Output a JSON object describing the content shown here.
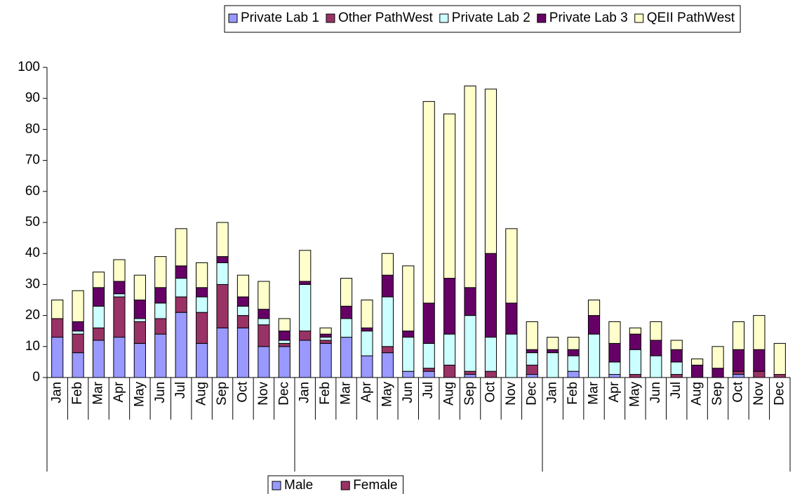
{
  "chart_data": {
    "type": "stacked_bar",
    "categories": [
      "Jan",
      "Feb",
      "Mar",
      "Apr",
      "May",
      "Jun",
      "Jul",
      "Aug",
      "Sep",
      "Oct",
      "Nov",
      "Dec",
      "Jan",
      "Feb",
      "Mar",
      "Apr",
      "May",
      "Jun",
      "Jul",
      "Aug",
      "Sep",
      "Oct",
      "Nov",
      "Dec",
      "Jan",
      "Feb",
      "Mar",
      "Apr",
      "May",
      "Jun",
      "Jul",
      "Aug",
      "Sep",
      "Oct",
      "Nov",
      "Dec"
    ],
    "series": [
      {
        "name": "Private Lab 1",
        "color": "#9999ff",
        "values": [
          13,
          8,
          12,
          13,
          11,
          14,
          21,
          11,
          16,
          16,
          10,
          10,
          12,
          11,
          13,
          7,
          8,
          2,
          2,
          0,
          1,
          0,
          0,
          1,
          0,
          2,
          0,
          1,
          0,
          0,
          0,
          0,
          0,
          1,
          0,
          0
        ]
      },
      {
        "name": "Other PathWest",
        "color": "#993366",
        "values": [
          6,
          6,
          4,
          13,
          7,
          5,
          5,
          10,
          14,
          4,
          7,
          1,
          3,
          1,
          0,
          0,
          2,
          0,
          1,
          4,
          1,
          2,
          0,
          3,
          0,
          0,
          0,
          0,
          1,
          0,
          1,
          0,
          0,
          1,
          2,
          1
        ]
      },
      {
        "name": "Private Lab 2",
        "color": "#ccffff",
        "values": [
          0,
          1,
          7,
          1,
          1,
          5,
          6,
          5,
          7,
          3,
          2,
          1,
          15,
          1,
          6,
          8,
          16,
          11,
          8,
          10,
          18,
          11,
          14,
          4,
          8,
          5,
          14,
          4,
          8,
          7,
          4,
          0,
          0,
          0,
          0,
          0
        ]
      },
      {
        "name": "Private Lab 3",
        "color": "#660066",
        "values": [
          0,
          3,
          6,
          4,
          6,
          5,
          4,
          3,
          2,
          3,
          3,
          3,
          1,
          1,
          4,
          1,
          7,
          2,
          13,
          18,
          9,
          27,
          10,
          1,
          1,
          2,
          6,
          6,
          5,
          5,
          4,
          4,
          3,
          7,
          7,
          0
        ]
      },
      {
        "name": "QEII PathWest",
        "color": "#ffffcc",
        "values": [
          6,
          10,
          5,
          7,
          8,
          10,
          12,
          8,
          11,
          7,
          9,
          4,
          10,
          2,
          9,
          9,
          7,
          21,
          65,
          53,
          65,
          53,
          24,
          9,
          4,
          4,
          5,
          7,
          2,
          6,
          3,
          2,
          7,
          9,
          11,
          10
        ]
      }
    ],
    "secondary_legend": [
      {
        "name": "Male",
        "color": "#9999ff"
      },
      {
        "name": "Female",
        "color": "#993366"
      }
    ],
    "ylim": [
      0,
      100
    ],
    "yticks": [
      0,
      10,
      20,
      30,
      40,
      50,
      60,
      70,
      80,
      90,
      100
    ],
    "grid": false
  }
}
